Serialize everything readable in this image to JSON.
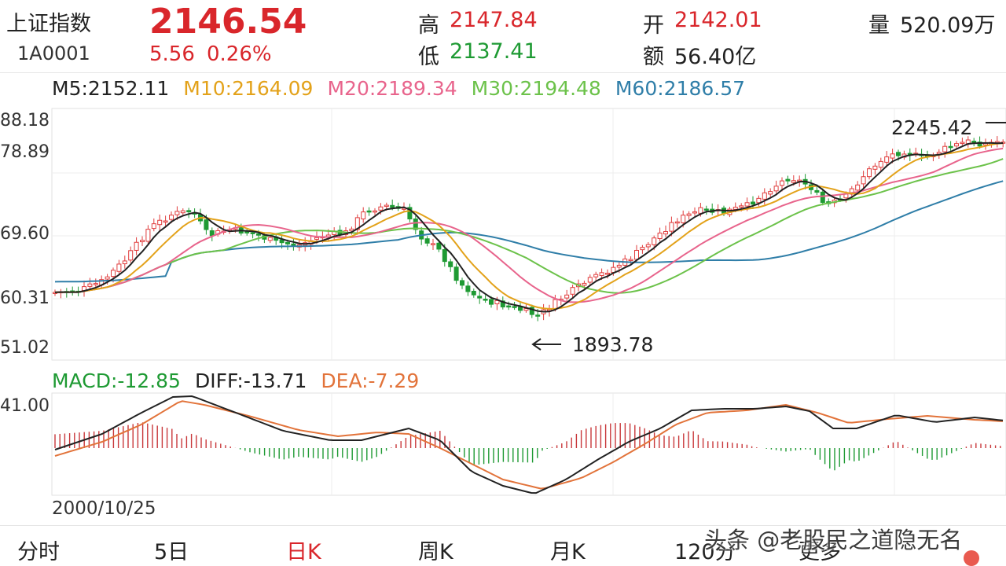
{
  "header": {
    "name": "上证指数",
    "code": "1A0001",
    "price": "2146.54",
    "change": "5.56",
    "change_pct": "0.26%",
    "high_label": "高",
    "high": "2147.84",
    "low_label": "低",
    "low": "2137.41",
    "open_label": "开",
    "open": "2142.01",
    "amount_label": "额",
    "amount": "56.40亿",
    "volume_label": "量",
    "volume": "520.09万"
  },
  "ma": {
    "m5": "M5:2152.11",
    "m10": "M10:2164.09",
    "m20": "M20:2189.34",
    "m30": "M30:2194.48",
    "m60": "M60:2186.57",
    "colors": {
      "m5": "#222222",
      "m10": "#e3a21a",
      "m20": "#e8648c",
      "m30": "#6cc24a",
      "m60": "#2f7ea8"
    }
  },
  "price_axis": {
    "labels": [
      "88.18",
      "78.89",
      "69.60",
      "60.31",
      "51.02"
    ]
  },
  "annotations": {
    "high": "2245.42",
    "low": "1893.78",
    "arrow": "←"
  },
  "macd": {
    "macd": "MACD:-12.85",
    "diff": "DIFF:-13.71",
    "dea": "DEA:-7.29",
    "axis_label": "41.00"
  },
  "date_label": "2000/10/25",
  "tabs": [
    {
      "label": "分时"
    },
    {
      "label": "5日"
    },
    {
      "label": "日K"
    },
    {
      "label": "周K"
    },
    {
      "label": "月K"
    },
    {
      "label": "120分"
    },
    {
      "label": "更多"
    }
  ],
  "watermark": "头条 @老股民之道隐无名"
}
